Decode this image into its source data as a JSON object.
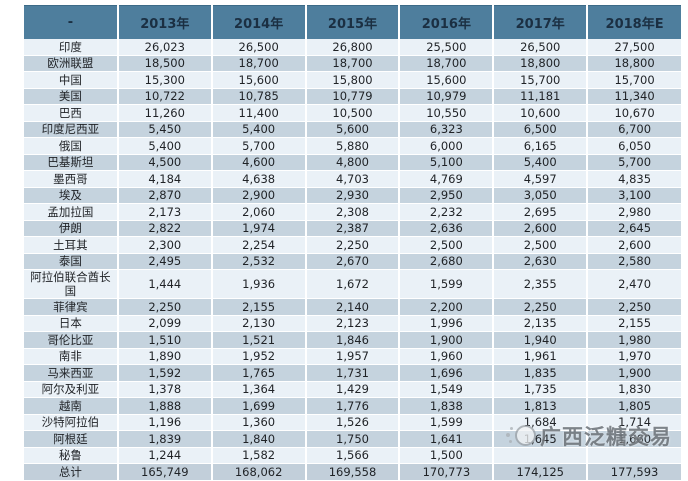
{
  "colors": {
    "header_bg": "#4e7e9d",
    "header_text": "#1b2f42",
    "row_light": "#eaf1f7",
    "row_dark": "#c5d3de",
    "total_row_bg": "#c2cfda",
    "body_text": "#1f2226",
    "watermark_text_color": "#6f757b"
  },
  "watermark": {
    "text": "广西泛糖交易",
    "logo": "sphere-dots-logo"
  },
  "chart_data": {
    "type": "table",
    "columns": [
      "-",
      "2013年",
      "2014年",
      "2015年",
      "2016年",
      "2017年",
      "2018年E"
    ],
    "rows": [
      {
        "label": "印度",
        "values": [
          "26,023",
          "26,500",
          "26,800",
          "25,500",
          "26,500",
          "27,500"
        ]
      },
      {
        "label": "欧洲联盟",
        "values": [
          "18,500",
          "18,700",
          "18,700",
          "18,700",
          "18,800",
          "18,800"
        ]
      },
      {
        "label": "中国",
        "values": [
          "15,300",
          "15,600",
          "15,800",
          "15,600",
          "15,700",
          "15,700"
        ]
      },
      {
        "label": "美国",
        "values": [
          "10,722",
          "10,785",
          "10,779",
          "10,979",
          "11,181",
          "11,340"
        ]
      },
      {
        "label": "巴西",
        "values": [
          "11,260",
          "11,400",
          "10,500",
          "10,550",
          "10,600",
          "10,670"
        ]
      },
      {
        "label": "印度尼西亚",
        "values": [
          "5,450",
          "5,400",
          "5,600",
          "6,323",
          "6,500",
          "6,700"
        ]
      },
      {
        "label": "俄国",
        "values": [
          "5,400",
          "5,700",
          "5,880",
          "6,000",
          "6,165",
          "6,050"
        ]
      },
      {
        "label": "巴基斯坦",
        "values": [
          "4,500",
          "4,600",
          "4,800",
          "5,100",
          "5,400",
          "5,700"
        ]
      },
      {
        "label": "墨西哥",
        "values": [
          "4,184",
          "4,638",
          "4,703",
          "4,769",
          "4,597",
          "4,835"
        ]
      },
      {
        "label": "埃及",
        "values": [
          "2,870",
          "2,900",
          "2,930",
          "2,950",
          "3,050",
          "3,100"
        ]
      },
      {
        "label": "孟加拉国",
        "values": [
          "2,173",
          "2,060",
          "2,308",
          "2,232",
          "2,695",
          "2,980"
        ]
      },
      {
        "label": "伊朗",
        "values": [
          "2,822",
          "1,974",
          "2,387",
          "2,636",
          "2,600",
          "2,645"
        ]
      },
      {
        "label": "土耳其",
        "values": [
          "2,300",
          "2,254",
          "2,250",
          "2,500",
          "2,500",
          "2,600"
        ]
      },
      {
        "label": "泰国",
        "values": [
          "2,495",
          "2,532",
          "2,670",
          "2,680",
          "2,630",
          "2,580"
        ]
      },
      {
        "label": "阿拉伯联合酋长国",
        "values": [
          "1,444",
          "1,936",
          "1,672",
          "1,599",
          "2,355",
          "2,470"
        ]
      },
      {
        "label": "菲律宾",
        "values": [
          "2,250",
          "2,155",
          "2,140",
          "2,200",
          "2,250",
          "2,250"
        ]
      },
      {
        "label": "日本",
        "values": [
          "2,099",
          "2,130",
          "2,123",
          "1,996",
          "2,135",
          "2,155"
        ]
      },
      {
        "label": "哥伦比亚",
        "values": [
          "1,510",
          "1,521",
          "1,846",
          "1,900",
          "1,940",
          "1,980"
        ]
      },
      {
        "label": "南非",
        "values": [
          "1,890",
          "1,952",
          "1,957",
          "1,960",
          "1,961",
          "1,970"
        ]
      },
      {
        "label": "马来西亚",
        "values": [
          "1,592",
          "1,765",
          "1,731",
          "1,696",
          "1,835",
          "1,900"
        ]
      },
      {
        "label": "阿尔及利亚",
        "values": [
          "1,378",
          "1,364",
          "1,429",
          "1,549",
          "1,735",
          "1,830"
        ]
      },
      {
        "label": "越南",
        "values": [
          "1,888",
          "1,699",
          "1,776",
          "1,838",
          "1,813",
          "1,805"
        ]
      },
      {
        "label": "沙特阿拉伯",
        "values": [
          "1,196",
          "1,360",
          "1,526",
          "1,599",
          "1,684",
          "1,714"
        ]
      },
      {
        "label": "阿根廷",
        "values": [
          "1,839",
          "1,840",
          "1,750",
          "1,641",
          "1,645",
          "1,660"
        ]
      },
      {
        "label": "秘鲁",
        "values": [
          "1,244",
          "1,582",
          "1,566",
          "1,500",
          "",
          ""
        ]
      }
    ],
    "total_row": {
      "label": "总计",
      "values": [
        "165,749",
        "168,062",
        "169,558",
        "170,773",
        "174,125",
        "177,593"
      ]
    },
    "notes": "秘鲁 row 2017年 and 2018年E cells are obscured by the watermark in the source image",
    "legend": "none",
    "grid": "white cell separators, alternating row shading"
  }
}
